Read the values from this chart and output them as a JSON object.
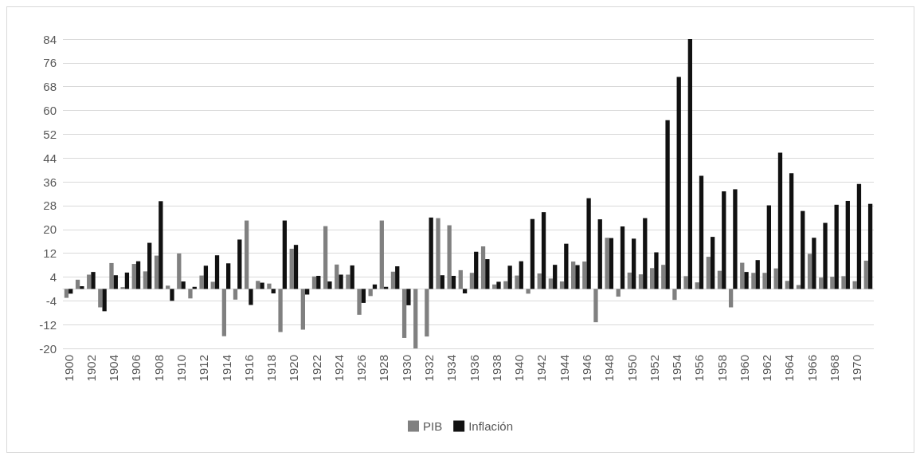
{
  "chart_data": {
    "type": "bar",
    "categories": [
      "1900",
      null,
      "1902",
      null,
      "1904",
      null,
      "1906",
      null,
      "1908",
      null,
      "1910",
      null,
      "1912",
      null,
      "1914",
      null,
      "1916",
      null,
      "1918",
      null,
      "1920",
      null,
      "1922",
      null,
      "1924",
      null,
      "1926",
      null,
      "1928",
      null,
      "1930",
      null,
      "1932",
      null,
      "1934",
      null,
      "1936",
      null,
      "1938",
      null,
      "1940",
      null,
      "1942",
      null,
      "1944",
      null,
      "1946",
      null,
      "1948",
      null,
      "1950",
      null,
      "1952",
      null,
      "1954",
      null,
      "1956",
      null,
      "1958",
      null,
      "1960",
      null,
      "1962",
      null,
      "1964",
      null,
      "1966",
      null,
      "1968",
      null,
      "1970",
      null
    ],
    "series": [
      {
        "name": "PIB",
        "color": "#808080",
        "values": [
          -3,
          3.1,
          4.8,
          -6.2,
          8.7,
          0.6,
          8.4,
          5.9,
          11.2,
          1.1,
          11.9,
          -3.2,
          4.5,
          2.4,
          -15.9,
          -3.6,
          23,
          2.7,
          1.8,
          -14.5,
          13.5,
          -13.7,
          4.2,
          21.1,
          8.2,
          4.8,
          -8.7,
          -2.4,
          23,
          5.8,
          -16.5,
          -20,
          -16,
          23.8,
          21.4,
          6.3,
          5.4,
          14.3,
          1.5,
          2.6,
          4.5,
          -1.6,
          5.2,
          3.5,
          2.5,
          9.2,
          9.2,
          -11.2,
          17.2,
          -2.6,
          5.5,
          4.9,
          7,
          8.1,
          -3.7,
          4.3,
          2.2,
          10.8,
          6.1,
          -6.2,
          8.8,
          5.4,
          5.4,
          6.9,
          2.7,
          1.3,
          11.8,
          3.8,
          4.1,
          4.3,
          2.6,
          9.5
        ]
      },
      {
        "name": "Inflación",
        "color": "#111111",
        "values": [
          -1.6,
          0.9,
          5.7,
          -7.5,
          4.6,
          5.5,
          9.3,
          15.5,
          29.5,
          -4,
          2.5,
          0.7,
          7.8,
          11.3,
          8.6,
          16.6,
          -5.4,
          2.1,
          -1.5,
          23,
          14.8,
          -1.9,
          4.4,
          2.5,
          4.8,
          7.9,
          -4.7,
          1.5,
          0.7,
          7.6,
          -5.5,
          0,
          24,
          4.6,
          4.4,
          -1.5,
          12.5,
          10,
          2.4,
          7.8,
          9.3,
          23.5,
          25.8,
          8.1,
          15.2,
          8,
          30.5,
          23.4,
          17.1,
          21,
          16.9,
          23.8,
          12.3,
          56.7,
          71.3,
          84,
          38,
          17.5,
          32.8,
          33.5,
          5.7,
          9.7,
          28.1,
          45.8,
          38.9,
          26.2,
          17.2,
          22.2,
          28.3,
          29.6,
          35.3,
          28.6
        ]
      }
    ],
    "ylim": [
      -20,
      84
    ],
    "yticks": [
      -20,
      -12,
      -4,
      4,
      12,
      20,
      28,
      36,
      44,
      52,
      60,
      68,
      76,
      84
    ],
    "grid": "y",
    "legend": "bottom"
  }
}
